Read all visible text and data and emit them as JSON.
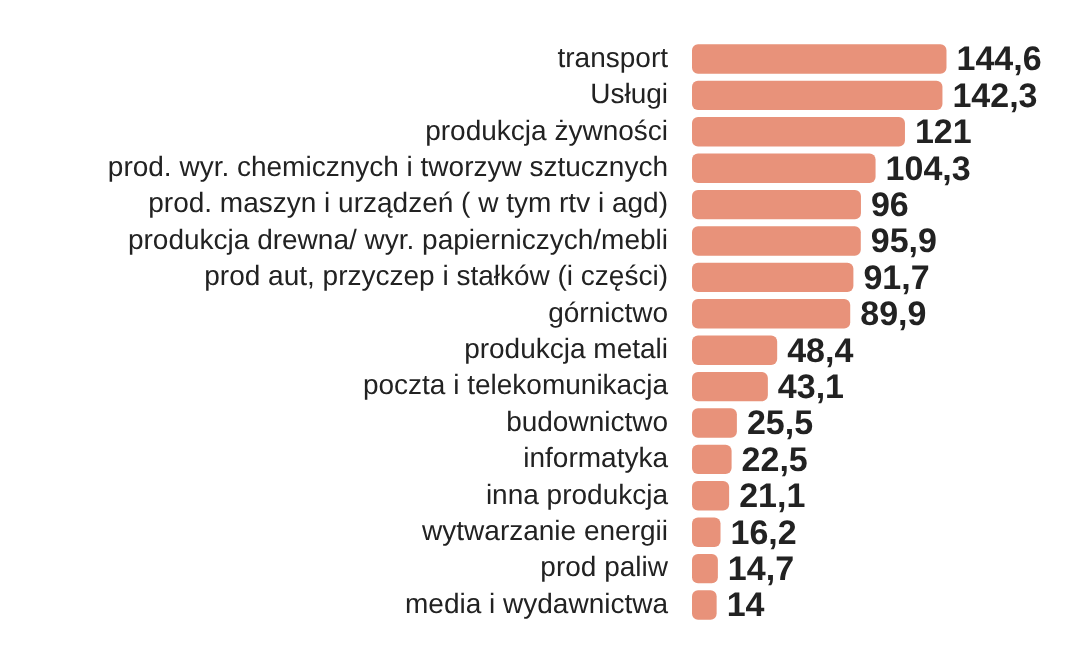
{
  "chart_data": {
    "type": "bar",
    "orientation": "horizontal",
    "categories": [
      "transport",
      "Usługi",
      "produkcja żywności",
      "prod. wyr. chemicznych i tworzyw sztucznych",
      "prod. maszyn i urządzeń ( w tym rtv i agd)",
      "produkcja drewna/ wyr. papierniczych/mebli",
      "prod aut, przyczep i stałków (i części)",
      "górnictwo",
      "produkcja metali",
      "poczta i telekomunikacja",
      "budownictwo",
      "informatyka",
      "inna produkcja",
      "wytwarzanie energii",
      "prod paliw",
      "media i wydawnictwa"
    ],
    "values": [
      144.6,
      142.3,
      121,
      104.3,
      96,
      95.9,
      91.7,
      89.9,
      48.4,
      43.1,
      25.5,
      22.5,
      21.1,
      16.2,
      14.7,
      14
    ],
    "value_labels": [
      "144,6",
      "142,3",
      "121",
      "104,3",
      "96",
      "95,9",
      "91,7",
      "89,9",
      "48,4",
      "43,1",
      "25,5",
      "22,5",
      "21,1",
      "16,2",
      "14,7",
      "14"
    ],
    "color": "#e8927a"
  }
}
